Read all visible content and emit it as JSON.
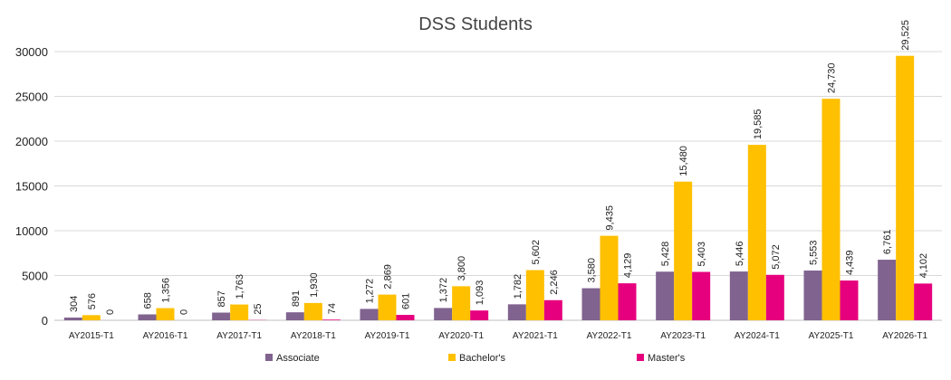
{
  "chart_data": {
    "type": "bar",
    "title": "DSS Students",
    "xlabel": "",
    "ylabel": "",
    "ylim": [
      0,
      30000
    ],
    "yticks": [
      "0",
      "5000",
      "10000",
      "15000",
      "20000",
      "25000",
      "30000"
    ],
    "grid": true,
    "legend_position": "bottom",
    "categories": [
      "AY2015-T1",
      "AY2016-T1",
      "AY2017-T1",
      "AY2018-T1",
      "AY2019-T1",
      "AY2020-T1",
      "AY2021-T1",
      "AY2022-T1",
      "AY2023-T1",
      "AY2024-T1",
      "AY2025-T1",
      "AY2026-T1"
    ],
    "series": [
      {
        "name": "Associate",
        "color": "#80638F",
        "values": [
          304,
          658,
          857,
          891,
          1272,
          1372,
          1782,
          3580,
          5428,
          5446,
          5553,
          6761
        ],
        "labels": [
          "304",
          "658",
          "857",
          "891",
          "1,272",
          "1,372",
          "1,782",
          "3,580",
          "5,428",
          "5,446",
          "5,553",
          "6,761"
        ]
      },
      {
        "name": "Bachelor's",
        "color": "#FFC000",
        "values": [
          576,
          1356,
          1763,
          1930,
          2869,
          3800,
          5602,
          9435,
          15480,
          19585,
          24730,
          29525
        ],
        "labels": [
          "576",
          "1,356",
          "1,763",
          "1,930",
          "2,869",
          "3,800",
          "5,602",
          "9,435",
          "15,480",
          "19,585",
          "24,730",
          "29,525"
        ]
      },
      {
        "name": "Master's",
        "color": "#E6007E",
        "values": [
          0,
          0,
          25,
          74,
          601,
          1093,
          2246,
          4129,
          5403,
          5072,
          4439,
          4102
        ],
        "labels": [
          "0",
          "0",
          "25",
          "74",
          "601",
          "1,093",
          "2,246",
          "4,129",
          "5,403",
          "5,072",
          "4,439",
          "4,102"
        ]
      }
    ]
  }
}
